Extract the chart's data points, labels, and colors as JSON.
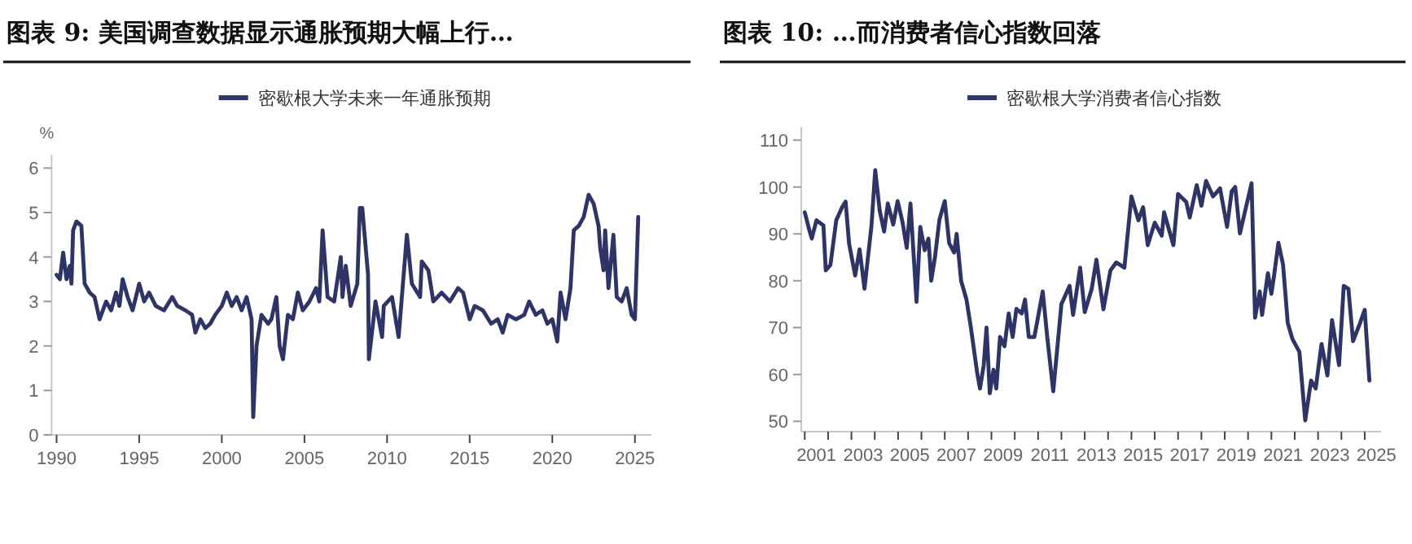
{
  "chart_data": [
    {
      "type": "line",
      "title": "图表 9: 美国调查数据显示通胀预期大幅上行…",
      "ylabel": "%",
      "legend": "top",
      "grid": false,
      "xlim": [
        1989.7,
        2026
      ],
      "ylim": [
        0,
        6.3
      ],
      "xticks": [
        1990,
        1995,
        2000,
        2005,
        2010,
        2015,
        2020,
        2025
      ],
      "yticks": [
        0,
        1,
        2,
        3,
        4,
        5,
        6
      ],
      "series": [
        {
          "name": "密歇根大学未来一年通胀预期",
          "color": "#2e3566",
          "x": [
            1990.0,
            1990.2,
            1990.4,
            1990.6,
            1990.8,
            1990.9,
            1991.0,
            1991.2,
            1991.5,
            1991.7,
            1992.0,
            1992.3,
            1992.6,
            1993.0,
            1993.3,
            1993.6,
            1993.8,
            1994.0,
            1994.3,
            1994.6,
            1995.0,
            1995.3,
            1995.6,
            1996.0,
            1996.5,
            1997.0,
            1997.3,
            1997.8,
            1998.2,
            1998.4,
            1998.7,
            1999.0,
            1999.3,
            1999.6,
            2000.0,
            2000.3,
            2000.6,
            2000.9,
            2001.2,
            2001.5,
            2001.8,
            2001.9,
            2002.1,
            2002.4,
            2002.8,
            2003.0,
            2003.3,
            2003.5,
            2003.7,
            2004.0,
            2004.3,
            2004.6,
            2004.9,
            2005.3,
            2005.7,
            2005.9,
            2006.1,
            2006.4,
            2006.8,
            2007.2,
            2007.3,
            2007.5,
            2007.8,
            2008.2,
            2008.35,
            2008.5,
            2008.85,
            2008.9,
            2009.3,
            2009.7,
            2009.8,
            2010.3,
            2010.7,
            2011.2,
            2011.5,
            2012.0,
            2012.1,
            2012.5,
            2012.8,
            2013.3,
            2013.8,
            2014.3,
            2014.6,
            2015.0,
            2015.3,
            2015.8,
            2016.3,
            2016.7,
            2017.0,
            2017.3,
            2017.8,
            2018.3,
            2018.6,
            2019.0,
            2019.4,
            2019.7,
            2020.0,
            2020.3,
            2020.5,
            2020.8,
            2021.1,
            2021.3,
            2021.6,
            2021.9,
            2022.2,
            2022.5,
            2022.8,
            2022.9,
            2023.1,
            2023.2,
            2023.4,
            2023.7,
            2023.9,
            2024.2,
            2024.5,
            2024.8,
            2025.0,
            2025.2
          ],
          "values": [
            3.6,
            3.5,
            4.1,
            3.5,
            3.8,
            3.4,
            4.6,
            4.8,
            4.7,
            3.4,
            3.2,
            3.1,
            2.6,
            3.0,
            2.8,
            3.2,
            2.9,
            3.5,
            3.1,
            2.8,
            3.4,
            3.0,
            3.2,
            2.9,
            2.8,
            3.1,
            2.9,
            2.8,
            2.7,
            2.3,
            2.6,
            2.4,
            2.5,
            2.7,
            2.9,
            3.2,
            2.9,
            3.1,
            2.8,
            3.1,
            2.6,
            0.4,
            2.0,
            2.7,
            2.5,
            2.6,
            3.1,
            2.0,
            1.7,
            2.7,
            2.6,
            3.2,
            2.8,
            3.0,
            3.3,
            3.0,
            4.6,
            3.1,
            3.0,
            4.0,
            3.1,
            3.8,
            2.9,
            3.4,
            5.1,
            5.1,
            3.6,
            1.7,
            3.0,
            2.2,
            2.9,
            3.1,
            2.2,
            4.5,
            3.4,
            3.1,
            3.9,
            3.7,
            3.0,
            3.2,
            3.0,
            3.3,
            3.2,
            2.6,
            2.9,
            2.8,
            2.5,
            2.6,
            2.3,
            2.7,
            2.6,
            2.7,
            3.0,
            2.7,
            2.8,
            2.5,
            2.6,
            2.1,
            3.2,
            2.6,
            3.3,
            4.6,
            4.7,
            4.9,
            5.4,
            5.2,
            4.7,
            4.2,
            3.7,
            4.6,
            3.3,
            4.5,
            3.1,
            3.0,
            3.3,
            2.7,
            2.6,
            4.9
          ]
        }
      ]
    },
    {
      "type": "line",
      "title": "图表 10: …而消费者信心指数回落",
      "legend": "top",
      "grid": false,
      "xlim": [
        2000.85,
        2025.7
      ],
      "ylim": [
        47.8,
        112.8
      ],
      "yticks": [
        50,
        60,
        70,
        80,
        90,
        100,
        110
      ],
      "xticks": [
        {
          "value": 2001,
          "label": null
        },
        {
          "value": 2001.5,
          "label": "2001"
        },
        {
          "value": 2002,
          "label": null
        },
        {
          "value": 2003,
          "label": null
        },
        {
          "value": 2003.5,
          "label": "2003"
        },
        {
          "value": 2004,
          "label": null
        },
        {
          "value": 2005,
          "label": null
        },
        {
          "value": 2005.5,
          "label": "2005"
        },
        {
          "value": 2006,
          "label": null
        },
        {
          "value": 2007,
          "label": null
        },
        {
          "value": 2007.5,
          "label": "2007"
        },
        {
          "value": 2008,
          "label": null
        },
        {
          "value": 2009,
          "label": null
        },
        {
          "value": 2009.5,
          "label": "2009"
        },
        {
          "value": 2010,
          "label": null
        },
        {
          "value": 2011,
          "label": null
        },
        {
          "value": 2011.5,
          "label": "2011"
        },
        {
          "value": 2012,
          "label": null
        },
        {
          "value": 2013,
          "label": null
        },
        {
          "value": 2013.5,
          "label": "2013"
        },
        {
          "value": 2014,
          "label": null
        },
        {
          "value": 2015,
          "label": null
        },
        {
          "value": 2015.5,
          "label": "2015"
        },
        {
          "value": 2016,
          "label": null
        },
        {
          "value": 2017,
          "label": null
        },
        {
          "value": 2017.5,
          "label": "2017"
        },
        {
          "value": 2018,
          "label": null
        },
        {
          "value": 2019,
          "label": null
        },
        {
          "value": 2019.5,
          "label": "2019"
        },
        {
          "value": 2020,
          "label": null
        },
        {
          "value": 2021,
          "label": null
        },
        {
          "value": 2021.5,
          "label": "2021"
        },
        {
          "value": 2022,
          "label": null
        },
        {
          "value": 2023,
          "label": null
        },
        {
          "value": 2023.5,
          "label": "2023"
        },
        {
          "value": 2024,
          "label": null
        },
        {
          "value": 2025,
          "label": null
        },
        {
          "value": 2025.5,
          "label": "2025"
        }
      ],
      "series": [
        {
          "name": "密歇根大学消费者信心指数",
          "color": "#2e3566",
          "x": [
            2001.0,
            2001.2,
            2001.3,
            2001.5,
            2001.8,
            2001.9,
            2002.1,
            2002.35,
            2002.6,
            2002.75,
            2002.9,
            2003.16,
            2003.35,
            2003.56,
            2003.86,
            2004.02,
            2004.21,
            2004.4,
            2004.56,
            2004.79,
            2004.98,
            2005.19,
            2005.37,
            2005.53,
            2005.79,
            2005.95,
            2006.14,
            2006.3,
            2006.42,
            2006.58,
            2006.77,
            2007.0,
            2007.19,
            2007.4,
            2007.51,
            2007.7,
            2007.93,
            2008.12,
            2008.4,
            2008.51,
            2008.67,
            2008.79,
            2008.93,
            2009.09,
            2009.21,
            2009.37,
            2009.56,
            2009.74,
            2009.91,
            2010.07,
            2010.3,
            2010.44,
            2010.6,
            2010.84,
            2011.2,
            2011.4,
            2011.65,
            2012.0,
            2012.35,
            2012.5,
            2012.8,
            2013.0,
            2013.3,
            2013.5,
            2013.8,
            2014.1,
            2014.35,
            2014.7,
            2015.0,
            2015.3,
            2015.5,
            2015.7,
            2016.0,
            2016.3,
            2016.4,
            2016.8,
            2017.0,
            2017.35,
            2017.5,
            2017.8,
            2018.0,
            2018.2,
            2018.5,
            2018.8,
            2019.1,
            2019.3,
            2019.45,
            2019.65,
            2020.15,
            2020.3,
            2020.5,
            2020.6,
            2020.85,
            2021.0,
            2021.1,
            2021.3,
            2021.5,
            2021.7,
            2021.9,
            2022.2,
            2022.45,
            2022.7,
            2022.9,
            2023.15,
            2023.4,
            2023.6,
            2023.9,
            2024.1,
            2024.3,
            2024.5,
            2024.8,
            2025.0,
            2025.2
          ],
          "values": [
            94.6,
            90.7,
            89.0,
            92.9,
            91.8,
            82.2,
            83.4,
            92.9,
            95.7,
            96.9,
            87.9,
            81.1,
            86.7,
            78.3,
            91.8,
            103.6,
            95.0,
            90.5,
            96.5,
            92.0,
            97.0,
            92.5,
            87.0,
            96.5,
            75.5,
            91.5,
            86.5,
            89.0,
            80.0,
            85.0,
            93.0,
            97.0,
            88.0,
            86.0,
            90.0,
            80.0,
            76.0,
            70.0,
            60.0,
            57.0,
            62.0,
            70.0,
            56.0,
            61.0,
            57.0,
            68.0,
            66.0,
            73.0,
            68.0,
            74.0,
            73.0,
            76.0,
            68.0,
            68.0,
            77.7,
            67.6,
            56.4,
            75.0,
            78.9,
            72.7,
            82.8,
            73.3,
            78.3,
            84.5,
            73.9,
            82.2,
            83.9,
            82.8,
            98.0,
            92.9,
            95.7,
            87.6,
            92.4,
            89.6,
            94.6,
            87.6,
            98.5,
            96.8,
            93.5,
            100.4,
            96.0,
            101.3,
            98.0,
            99.7,
            91.5,
            99.1,
            100.0,
            90.1,
            100.8,
            72.1,
            77.7,
            72.7,
            81.6,
            77.2,
            80.6,
            88.1,
            83.4,
            71.0,
            67.6,
            64.8,
            50.2,
            58.7,
            57.0,
            66.5,
            59.8,
            71.6,
            62.0,
            78.9,
            78.3,
            67.1,
            71.0,
            73.8,
            58.7
          ]
        }
      ]
    }
  ]
}
